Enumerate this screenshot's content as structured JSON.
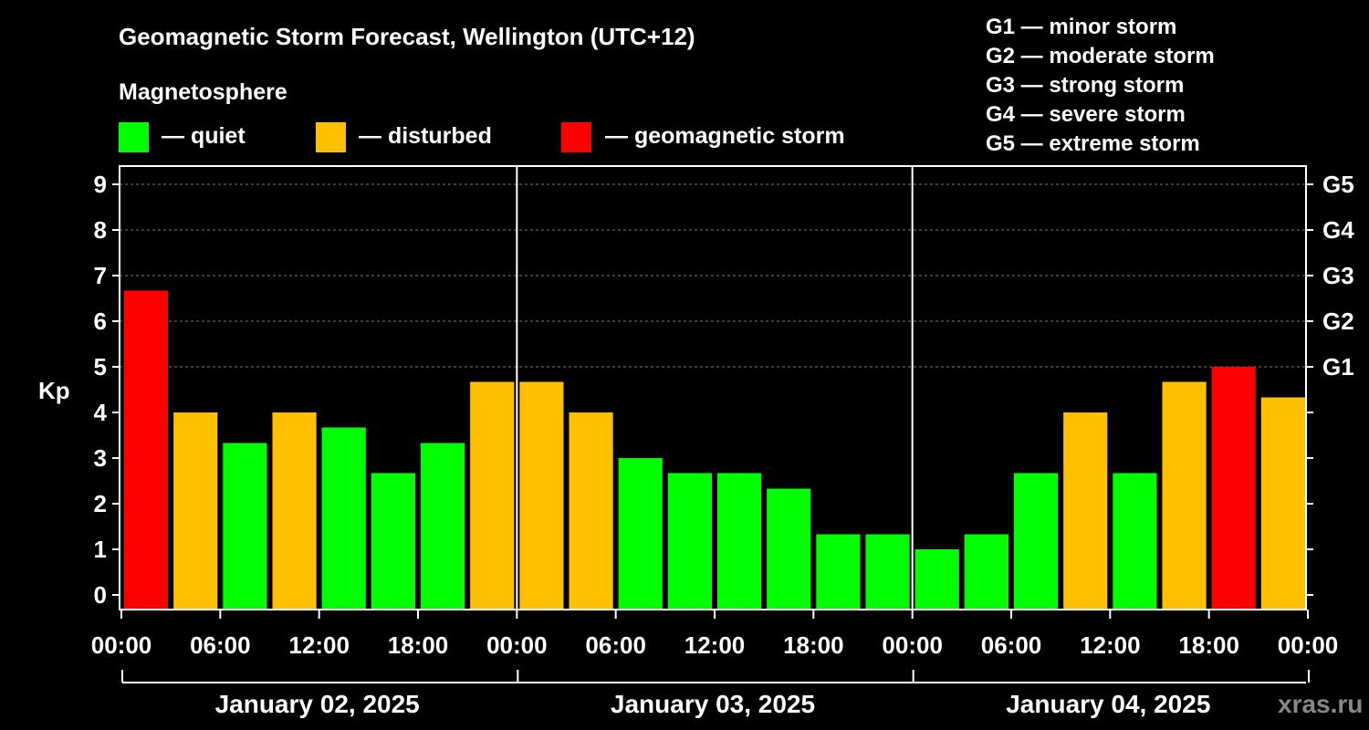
{
  "chart_data": {
    "type": "bar",
    "title": "Geomagnetic Storm Forecast, Wellington (UTC+12)",
    "legend_title": "Magnetosphere",
    "legend": [
      {
        "label": "— quiet",
        "color": "#00ff00"
      },
      {
        "label": "— disturbed",
        "color": "#ffc000"
      },
      {
        "label": "— geomagnetic storm",
        "color": "#ff0000"
      }
    ],
    "scale_legend": [
      "G1 — minor storm",
      "G2 — moderate storm",
      "G3 — strong storm",
      "G4 — severe storm",
      "G5 — extreme storm"
    ],
    "ylabel": "Kp",
    "ylim": [
      0,
      9
    ],
    "y_ticks": [
      "0",
      "1",
      "2",
      "3",
      "4",
      "5",
      "6",
      "7",
      "8",
      "9"
    ],
    "g_ticks": [
      {
        "kp": 5,
        "label": "G1"
      },
      {
        "kp": 6,
        "label": "G2"
      },
      {
        "kp": 7,
        "label": "G3"
      },
      {
        "kp": 8,
        "label": "G4"
      },
      {
        "kp": 9,
        "label": "G5"
      }
    ],
    "x_ticks": [
      "00:00",
      "06:00",
      "12:00",
      "18:00",
      "00:00",
      "06:00",
      "12:00",
      "18:00",
      "00:00",
      "06:00",
      "12:00",
      "18:00",
      "00:00"
    ],
    "days": [
      "January 02, 2025",
      "January 03, 2025",
      "January 04, 2025"
    ],
    "values": [
      6.67,
      4.0,
      3.33,
      4.0,
      3.67,
      2.67,
      3.33,
      4.67,
      4.67,
      4.0,
      3.0,
      2.67,
      2.67,
      2.33,
      1.33,
      1.33,
      1.0,
      1.33,
      2.67,
      4.0,
      2.67,
      4.67,
      5.0,
      4.33
    ],
    "colors": [
      "#ff0000",
      "#ffc000",
      "#00ff00",
      "#ffc000",
      "#00ff00",
      "#00ff00",
      "#00ff00",
      "#ffc000",
      "#ffc000",
      "#ffc000",
      "#00ff00",
      "#00ff00",
      "#00ff00",
      "#00ff00",
      "#00ff00",
      "#00ff00",
      "#00ff00",
      "#00ff00",
      "#00ff00",
      "#ffc000",
      "#00ff00",
      "#ffc000",
      "#ff0000",
      "#ffc000"
    ],
    "watermark": "xras.ru"
  }
}
